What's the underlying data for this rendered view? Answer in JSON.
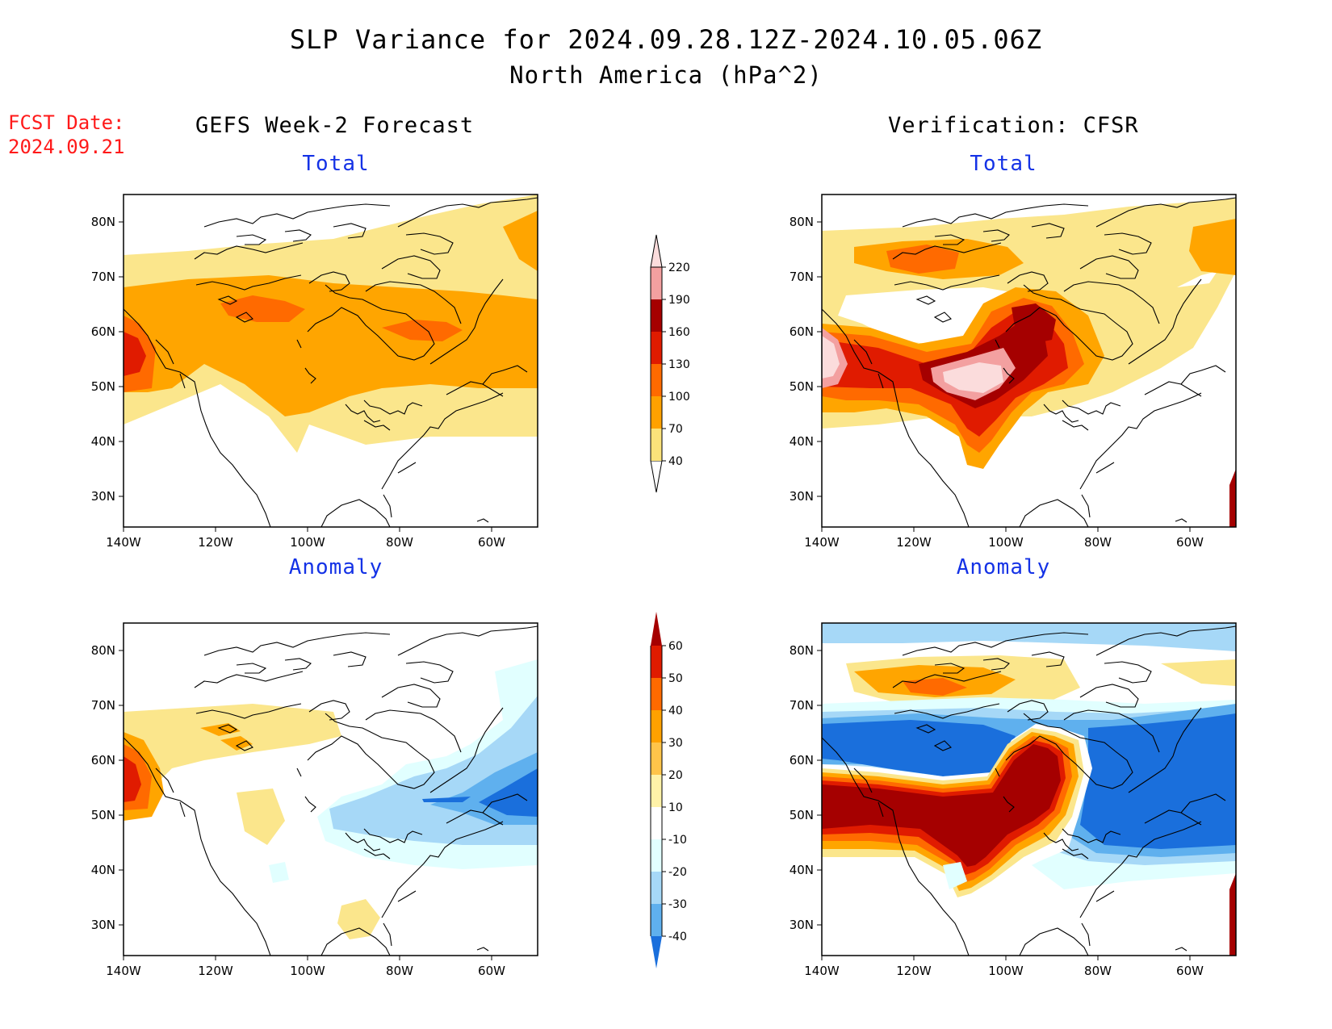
{
  "title_line1": "SLP Variance for 2024.09.28.12Z-2024.10.05.06Z",
  "title_line2": "North America (hPa^2)",
  "fcst_date_label": "FCST Date:",
  "fcst_date_value": "2024.09.21",
  "left_column_title": "GEFS Week-2 Forecast",
  "right_column_title": "Verification: CFSR",
  "panels": {
    "forecast_total": {
      "subtitle": "Total"
    },
    "forecast_anomaly": {
      "subtitle": "Anomaly"
    },
    "verification_total": {
      "subtitle": "Total"
    },
    "verification_anomaly": {
      "subtitle": "Anomaly"
    }
  },
  "lat_ticks": [
    "80N",
    "70N",
    "60N",
    "50N",
    "40N",
    "30N"
  ],
  "lon_ticks": [
    "140W",
    "120W",
    "100W",
    "80W",
    "60W"
  ],
  "total_colorbar": {
    "labels": [
      "40",
      "70",
      "100",
      "130",
      "160",
      "190",
      "220"
    ],
    "colors": [
      "#fbe27a",
      "#ffa100",
      "#ff6a00",
      "#e01b00",
      "#a50000",
      "#f3a0a0",
      "#fbdcdc"
    ]
  },
  "anomaly_colorbar": {
    "labels": [
      "60",
      "50",
      "40",
      "30",
      "20",
      "10",
      "-10",
      "-20",
      "-30",
      "-40"
    ],
    "colors_top_to_bottom": [
      "#a50000",
      "#e01b00",
      "#ff6a00",
      "#ffa100",
      "#ffc44a",
      "#fff2a8",
      "#ffffff",
      "#e1ffff",
      "#a6d8f7",
      "#5fb0ee",
      "#1a6fdc"
    ]
  },
  "palette": {
    "yellow": "#fbe68c",
    "orange": "#ffa500",
    "dark_orange": "#ff6a00",
    "red": "#e01b00",
    "dark_red": "#a50000",
    "pink": "#f3a0a0",
    "light_pink": "#fbdcdc",
    "light_cyan": "#e1ffff",
    "light_blue": "#a6d8f7",
    "blue": "#5fb0ee",
    "dark_blue": "#1a6fdc"
  }
}
